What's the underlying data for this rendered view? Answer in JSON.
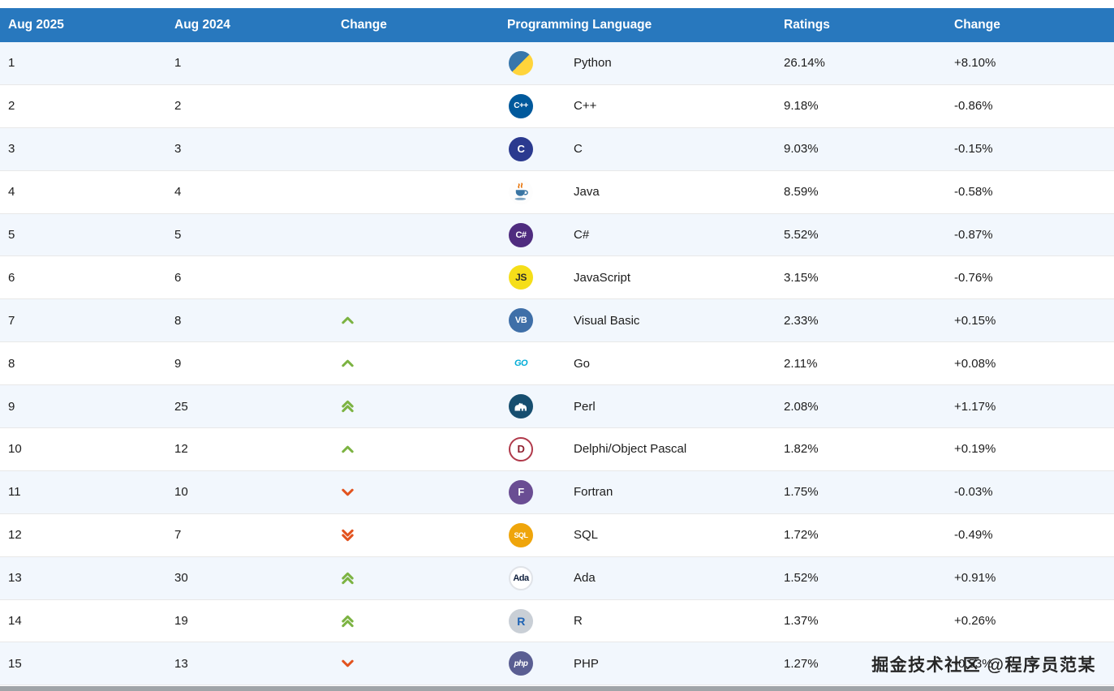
{
  "header": {
    "columns": [
      "Aug 2025",
      "Aug 2024",
      "Change",
      "Programming Language",
      "Ratings",
      "Change"
    ]
  },
  "rows": [
    {
      "rank_2025": "1",
      "rank_2024": "1",
      "trend": "none",
      "icon": "python-icon",
      "language": "Python",
      "ratings": "26.14%",
      "change": "+8.10%"
    },
    {
      "rank_2025": "2",
      "rank_2024": "2",
      "trend": "none",
      "icon": "cpp-icon",
      "language": "C++",
      "ratings": "9.18%",
      "change": "-0.86%"
    },
    {
      "rank_2025": "3",
      "rank_2024": "3",
      "trend": "none",
      "icon": "c-icon",
      "language": "C",
      "ratings": "9.03%",
      "change": "-0.15%"
    },
    {
      "rank_2025": "4",
      "rank_2024": "4",
      "trend": "none",
      "icon": "java-icon",
      "language": "Java",
      "ratings": "8.59%",
      "change": "-0.58%"
    },
    {
      "rank_2025": "5",
      "rank_2024": "5",
      "trend": "none",
      "icon": "csharp-icon",
      "language": "C#",
      "ratings": "5.52%",
      "change": "-0.87%"
    },
    {
      "rank_2025": "6",
      "rank_2024": "6",
      "trend": "none",
      "icon": "js-icon",
      "language": "JavaScript",
      "ratings": "3.15%",
      "change": "-0.76%"
    },
    {
      "rank_2025": "7",
      "rank_2024": "8",
      "trend": "up",
      "icon": "vb-icon",
      "language": "Visual Basic",
      "ratings": "2.33%",
      "change": "+0.15%"
    },
    {
      "rank_2025": "8",
      "rank_2024": "9",
      "trend": "up",
      "icon": "go-icon",
      "language": "Go",
      "ratings": "2.11%",
      "change": "+0.08%"
    },
    {
      "rank_2025": "9",
      "rank_2024": "25",
      "trend": "up2",
      "icon": "perl-icon",
      "language": "Perl",
      "ratings": "2.08%",
      "change": "+1.17%"
    },
    {
      "rank_2025": "10",
      "rank_2024": "12",
      "trend": "up",
      "icon": "delphi-icon",
      "language": "Delphi/Object Pascal",
      "ratings": "1.82%",
      "change": "+0.19%"
    },
    {
      "rank_2025": "11",
      "rank_2024": "10",
      "trend": "down",
      "icon": "fortran-icon",
      "language": "Fortran",
      "ratings": "1.75%",
      "change": "-0.03%"
    },
    {
      "rank_2025": "12",
      "rank_2024": "7",
      "trend": "down2",
      "icon": "sql-icon",
      "language": "SQL",
      "ratings": "1.72%",
      "change": "-0.49%"
    },
    {
      "rank_2025": "13",
      "rank_2024": "30",
      "trend": "up2",
      "icon": "ada-icon",
      "language": "Ada",
      "ratings": "1.52%",
      "change": "+0.91%"
    },
    {
      "rank_2025": "14",
      "rank_2024": "19",
      "trend": "up2",
      "icon": "r-icon",
      "language": "R",
      "ratings": "1.37%",
      "change": "+0.26%"
    },
    {
      "rank_2025": "15",
      "rank_2024": "13",
      "trend": "down",
      "icon": "php-icon",
      "language": "PHP",
      "ratings": "1.27%",
      "change": "-0.53%"
    }
  ],
  "icons": {
    "python-icon": {
      "bg": "linear-gradient(135deg,#3776AB 50%,#FFD43B 50%)",
      "text": "",
      "fg": "#ffffff"
    },
    "cpp-icon": {
      "bg": "#00599C",
      "text": "C++",
      "fg": "#ffffff",
      "fs": "10px"
    },
    "c-icon": {
      "bg": "#2B3A8F",
      "text": "C",
      "fg": "#ffffff",
      "fs": "13px"
    },
    "java-icon": {
      "bg": "#FDFDFD",
      "svg": "java-cup"
    },
    "csharp-icon": {
      "bg": "#4F2C7F",
      "text": "C#",
      "fg": "#ffffff",
      "fs": "11px"
    },
    "js-icon": {
      "bg": "#F5DE19",
      "text": "JS",
      "fg": "#2E2E2C",
      "fs": "12px"
    },
    "vb-icon": {
      "bg": "#3F6FA8",
      "text": "VB",
      "fg": "#ffffff",
      "fs": "11px"
    },
    "go-icon": {
      "bg": "#FFFFFF",
      "text": "GO",
      "fg": "#00ACD7",
      "fs": "11px",
      "italic": true
    },
    "perl-icon": {
      "bg": "#174E6F",
      "svg": "perl-camel"
    },
    "delphi-icon": {
      "bg": "#FFFFFF",
      "text": "D",
      "fg": "#8E1F2F",
      "fs": "13px",
      "border": "#B0394A"
    },
    "fortran-icon": {
      "bg": "#6A4D93",
      "text": "F",
      "fg": "#ffffff",
      "fs": "13px"
    },
    "sql-icon": {
      "bg": "#EFA50B",
      "text": "SQL",
      "fg": "#ffffff",
      "fs": "9px"
    },
    "ada-icon": {
      "bg": "#FFFFFF",
      "text": "Ada",
      "fg": "#0F1F3D",
      "fs": "11px",
      "border": "#E0E3E8"
    },
    "r-icon": {
      "bg": "#C9CFD6",
      "text": "R",
      "fg": "#1E63B4",
      "fs": "14px"
    },
    "php-icon": {
      "bg": "#5A5E92",
      "text": "php",
      "fg": "#ffffff",
      "fs": "10px",
      "italic": true
    }
  },
  "colors": {
    "header_bg": "#2878BE",
    "up_arrow": "#7CB342",
    "down_arrow": "#E2531F",
    "alt_row_bg": "#F2F7FD"
  },
  "watermark": "掘金技术社区 @程序员范某"
}
